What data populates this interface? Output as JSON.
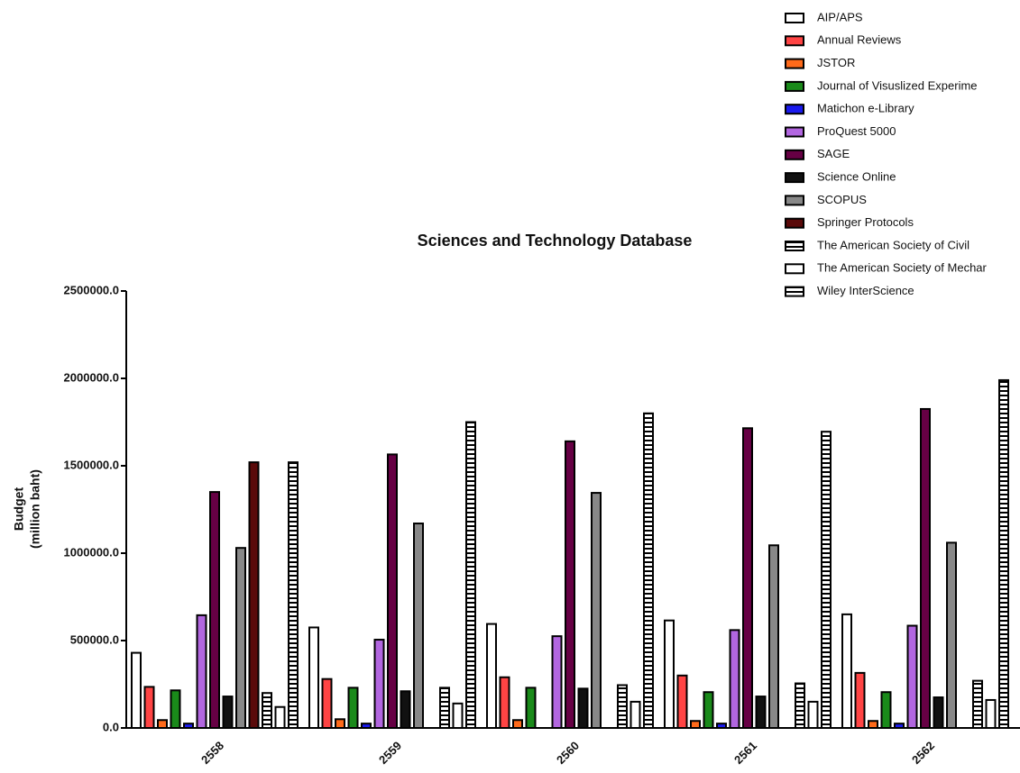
{
  "chart_data": {
    "type": "bar",
    "title": "Sciences and Technology Database",
    "y_label": [
      "Budget",
      "(million baht)"
    ],
    "categories": [
      "2558",
      "2559",
      "2560",
      "2561",
      "2562"
    ],
    "ylim": [
      0,
      2500000
    ],
    "yticks": [
      {
        "value": 0,
        "label": "0.0"
      },
      {
        "value": 500000,
        "label": "500000.0"
      },
      {
        "value": 1000000,
        "label": "1000000.0"
      },
      {
        "value": 1500000,
        "label": "1500000.0"
      },
      {
        "value": 2000000,
        "label": "2000000.0"
      },
      {
        "value": 2500000,
        "label": "2500000.0"
      }
    ],
    "series": [
      {
        "name": "AIP/APS",
        "color": "#ffffff",
        "values": [
          430000,
          575000,
          595000,
          615000,
          650000
        ]
      },
      {
        "name": "Annual Reviews",
        "color": "#ff4444",
        "values": [
          235000,
          280000,
          290000,
          300000,
          315000
        ]
      },
      {
        "name": "JSTOR",
        "color": "#ff6a1a",
        "values": [
          45000,
          50000,
          45000,
          40000,
          40000
        ]
      },
      {
        "name": "Journal of Visuslized Experime",
        "color": "#1a8a1a",
        "values": [
          215000,
          230000,
          230000,
          205000,
          205000
        ]
      },
      {
        "name": "Matichon e-Library",
        "color": "#1a1aee",
        "values": [
          25000,
          25000,
          0,
          25000,
          25000
        ]
      },
      {
        "name": "ProQuest 5000",
        "color": "#b266e0",
        "values": [
          645000,
          505000,
          525000,
          560000,
          585000
        ]
      },
      {
        "name": "SAGE",
        "color": "#660044",
        "values": [
          1350000,
          1565000,
          1640000,
          1715000,
          1825000
        ]
      },
      {
        "name": "Science Online",
        "color": "#111111",
        "values": [
          180000,
          210000,
          225000,
          180000,
          175000
        ]
      },
      {
        "name": "SCOPUS",
        "color": "#888888",
        "values": [
          1030000,
          1170000,
          1345000,
          1045000,
          1060000
        ]
      },
      {
        "name": "Springer Protocols",
        "color": "#5a0a0a",
        "values": [
          1520000,
          0,
          0,
          0,
          0
        ]
      },
      {
        "name": "The American Society of Civil",
        "color": "#ffffff",
        "pattern": "stripes",
        "values": [
          200000,
          230000,
          245000,
          255000,
          270000
        ]
      },
      {
        "name": "The American Society of Mechar",
        "color": "#ffffff",
        "values": [
          120000,
          140000,
          150000,
          150000,
          160000
        ]
      },
      {
        "name": "Wiley InterScience",
        "color": "#ffffff",
        "pattern": "stripes",
        "values": [
          1520000,
          1750000,
          1800000,
          1695000,
          1990000
        ]
      }
    ]
  }
}
